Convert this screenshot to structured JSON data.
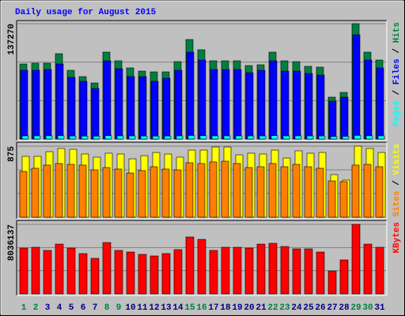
{
  "chart_data": [
    {
      "type": "bar",
      "title": "Daily usage for August 2015",
      "ylim": [
        0,
        137270
      ],
      "yticks": [
        137270
      ],
      "grid_divisions": 3,
      "legend_separator": "/",
      "series": [
        {
          "name": "Hits",
          "color": "#008040",
          "values": [
            89320,
            90260,
            90260,
            101540,
            81800,
            74280,
            66750,
            103420,
            93080,
            84620,
            80860,
            79920,
            79920,
            92140,
            118470,
            106240,
            93080,
            93080,
            93080,
            87440,
            88380,
            103420,
            93080,
            92140,
            86500,
            85560,
            49830,
            55470,
            137270,
            103420,
            94020
          ]
        },
        {
          "name": "Files",
          "color": "#0000ff",
          "values": [
            81800,
            81800,
            82740,
            89320,
            73340,
            68630,
            60170,
            93080,
            83680,
            74280,
            74280,
            68630,
            72400,
            81800,
            103420,
            94020,
            82740,
            82740,
            82740,
            78980,
            81800,
            93080,
            80860,
            80860,
            78040,
            76160,
            45130,
            49830,
            124110,
            94020,
            84620
          ]
        },
        {
          "name": "Pages",
          "color": "#00ffff",
          "values": [
            3760,
            3760,
            3850,
            3950,
            3600,
            3500,
            3400,
            4100,
            3800,
            3700,
            3600,
            3500,
            3600,
            3760,
            4200,
            4000,
            3760,
            3760,
            3760,
            3700,
            3700,
            4000,
            3760,
            3760,
            3700,
            3600,
            3000,
            3200,
            4300,
            3900,
            3760
          ]
        }
      ]
    },
    {
      "type": "bar",
      "ylim": [
        0,
        875
      ],
      "yticks": [
        875
      ],
      "grid_divisions": 3,
      "legend_separator": "/",
      "series": [
        {
          "name": "Visits",
          "color": "#ffff00",
          "values": [
            749,
            749,
            807,
            846,
            836,
            778,
            739,
            788,
            778,
            719,
            758,
            797,
            778,
            739,
            826,
            826,
            865,
            865,
            768,
            788,
            778,
            826,
            729,
            817,
            788,
            797,
            525,
            457,
            875,
            846,
            797
          ]
        },
        {
          "name": "Sites",
          "color": "#ff8000",
          "values": [
            564,
            603,
            642,
            661,
            651,
            642,
            583,
            612,
            593,
            544,
            574,
            622,
            593,
            583,
            671,
            661,
            681,
            690,
            661,
            612,
            622,
            661,
            622,
            651,
            622,
            603,
            447,
            438,
            642,
            651,
            622
          ]
        }
      ]
    },
    {
      "type": "bar",
      "ylim": [
        0,
        8036137
      ],
      "yticks": [
        8036137
      ],
      "grid_divisions": 3,
      "categories": [
        "1",
        "2",
        "3",
        "4",
        "5",
        "6",
        "7",
        "8",
        "9",
        "10",
        "11",
        "12",
        "13",
        "14",
        "15",
        "16",
        "17",
        "18",
        "19",
        "20",
        "21",
        "22",
        "23",
        "24",
        "25",
        "26",
        "27",
        "28",
        "29",
        "30",
        "31"
      ],
      "category_colors": [
        "#008040",
        "#008040",
        "#000080",
        "#000080",
        "#000080",
        "#000080",
        "#000080",
        "#008040",
        "#008040",
        "#000080",
        "#000080",
        "#000080",
        "#000080",
        "#000080",
        "#008040",
        "#008040",
        "#000080",
        "#000080",
        "#000080",
        "#000080",
        "#000080",
        "#008040",
        "#008040",
        "#000080",
        "#000080",
        "#000080",
        "#000080",
        "#000080",
        "#008040",
        "#008040",
        "#000080"
      ],
      "series": [
        {
          "name": "KBytes",
          "color": "#ff0000",
          "values": [
            5296560,
            5387880,
            5022600,
            5753160,
            5296560,
            4657320,
            4109400,
            5935800,
            5022600,
            4839960,
            4566000,
            4383360,
            4657320,
            5113920,
            6575040,
            6301080,
            5022600,
            5387880,
            5387880,
            5296560,
            5753160,
            5844480,
            5479200,
            5205240,
            5205240,
            4839960,
            2648280,
            3926760,
            8036137,
            5753160,
            5387880
          ]
        }
      ]
    }
  ]
}
